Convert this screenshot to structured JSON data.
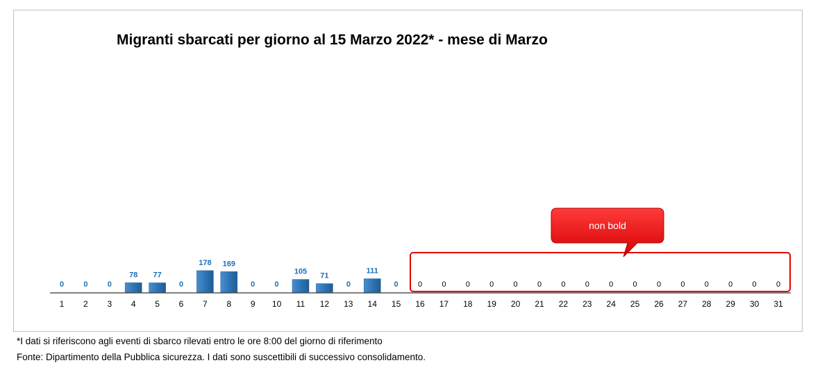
{
  "chart_data": {
    "type": "bar",
    "title": "Migranti sbarcati per giorno al 15 Marzo 2022* - mese di Marzo",
    "categories": [
      "1",
      "2",
      "3",
      "4",
      "5",
      "6",
      "7",
      "8",
      "9",
      "10",
      "11",
      "12",
      "13",
      "14",
      "15",
      "16",
      "17",
      "18",
      "19",
      "20",
      "21",
      "22",
      "23",
      "24",
      "25",
      "26",
      "27",
      "28",
      "29",
      "30",
      "31"
    ],
    "values": [
      0,
      0,
      0,
      78,
      77,
      0,
      178,
      169,
      0,
      0,
      105,
      71,
      0,
      111,
      0,
      0,
      0,
      0,
      0,
      0,
      0,
      0,
      0,
      0,
      0,
      0,
      0,
      0,
      0,
      0,
      0
    ],
    "xlabel": "",
    "ylabel": "",
    "grid": false,
    "colors": {
      "bar": "#2e75b6",
      "label_bold": "#1f6eb3",
      "highlight": "#e60000"
    },
    "callout": {
      "text": "non bold",
      "target_range": [
        "16",
        "31"
      ]
    }
  },
  "footnotes": [
    "*I dati si riferiscono agli eventi di sbarco rilevati entro le ore 8:00 del giorno di riferimento",
    "Fonte: Dipartimento della Pubblica sicurezza. I dati sono suscettibili di successivo consolidamento."
  ]
}
